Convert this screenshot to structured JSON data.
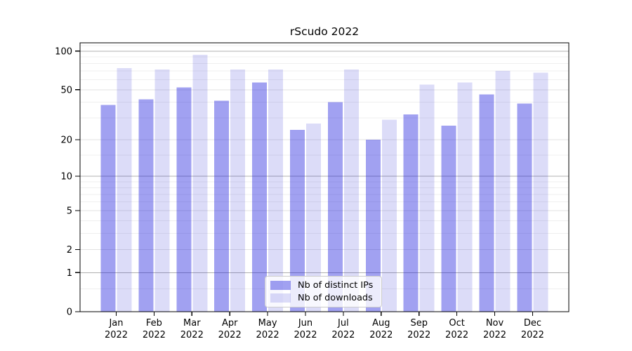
{
  "title": "rScudo 2022",
  "chart_data": {
    "type": "bar",
    "title": "rScudo 2022",
    "categories": [
      "Jan",
      "Feb",
      "Mar",
      "Apr",
      "May",
      "Jun",
      "Jul",
      "Aug",
      "Sep",
      "Oct",
      "Nov",
      "Dec"
    ],
    "x_year_label": "2022",
    "series": [
      {
        "name": "Nb of distinct IPs",
        "color": "#a1a1f1",
        "base_rgb": [
          21,
          21,
          220
        ],
        "opacity": 0.4,
        "values": [
          38,
          42,
          52,
          41,
          57,
          24,
          40,
          20,
          32,
          26,
          46,
          39
        ]
      },
      {
        "name": "Nb of downloads",
        "color": "#dcdcf8",
        "base_rgb": [
          22,
          22,
          208
        ],
        "opacity": 0.15,
        "values": [
          74,
          72,
          94,
          72,
          72,
          27,
          72,
          29,
          55,
          57,
          70,
          68
        ]
      }
    ],
    "y_scale": "log1p",
    "y_ticks": [
      0,
      1,
      2,
      5,
      10,
      20,
      50,
      100
    ],
    "y_minor_gridlines": [
      0.5,
      3,
      4,
      6,
      7,
      8,
      9,
      15,
      30,
      40,
      60,
      70,
      80,
      90,
      110
    ],
    "ylim": [
      0,
      116
    ],
    "grid": true,
    "legend_position": "lower-center"
  },
  "colors": {
    "grid_major": "#b0b0b0",
    "grid_labeled": "#e2e2e2",
    "grid_minor": "#efefef",
    "spine": "#000000",
    "text": "#000000",
    "background": "#ffffff"
  }
}
